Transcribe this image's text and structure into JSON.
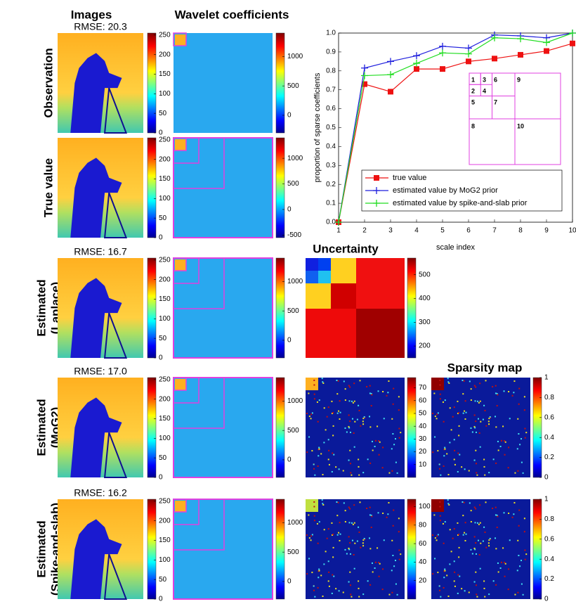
{
  "headers": {
    "images": "Images",
    "wavelet": "Wavelet coefficients",
    "uncertainty": "Uncertainty",
    "sparsity": "Sparsity map"
  },
  "rows": [
    {
      "label": [
        "Observation"
      ],
      "rmse": "RMSE: 20.3",
      "image_colorbar": {
        "lim": [
          0,
          255
        ],
        "ticks": [
          0,
          50,
          100,
          150,
          200,
          250
        ]
      },
      "wavelet_colorbar": {
        "lim": [
          -300,
          1400
        ],
        "ticks": [
          0,
          500,
          1000
        ]
      }
    },
    {
      "label": [
        "True value"
      ],
      "image_colorbar": {
        "lim": [
          0,
          255
        ],
        "ticks": [
          0,
          50,
          100,
          150,
          200,
          250
        ]
      },
      "wavelet_colorbar": {
        "lim": [
          -550,
          1400
        ],
        "ticks": [
          -500,
          0,
          500,
          1000
        ]
      }
    },
    {
      "label": [
        "Estimated",
        "(Laplace)"
      ],
      "rmse": "RMSE: 16.7",
      "image_colorbar": {
        "lim": [
          0,
          255
        ],
        "ticks": [
          0,
          50,
          100,
          150,
          200,
          250
        ]
      },
      "wavelet_colorbar": {
        "lim": [
          -300,
          1400
        ],
        "ticks": [
          0,
          500,
          1000
        ]
      },
      "uncertainty_colorbar": {
        "lim": [
          150,
          570
        ],
        "ticks": [
          200,
          300,
          400,
          500
        ]
      }
    },
    {
      "label": [
        "Estimated",
        "(MoG2)"
      ],
      "rmse": "RMSE: 17.0",
      "image_colorbar": {
        "lim": [
          0,
          255
        ],
        "ticks": [
          0,
          50,
          100,
          150,
          200,
          250
        ]
      },
      "wavelet_colorbar": {
        "lim": [
          -300,
          1400
        ],
        "ticks": [
          0,
          500,
          1000
        ]
      },
      "uncertainty_colorbar": {
        "lim": [
          0,
          78
        ],
        "ticks": [
          10,
          20,
          30,
          40,
          50,
          60,
          70
        ]
      },
      "sparsity_colorbar": {
        "lim": [
          0,
          1
        ],
        "ticks": [
          0,
          0.2,
          0.4,
          0.6,
          0.8,
          1
        ]
      }
    },
    {
      "label": [
        "Estimated",
        "(Spike-and-slab)"
      ],
      "rmse": "RMSE: 16.2",
      "image_colorbar": {
        "lim": [
          0,
          255
        ],
        "ticks": [
          0,
          50,
          100,
          150,
          200,
          250
        ]
      },
      "wavelet_colorbar": {
        "lim": [
          -300,
          1400
        ],
        "ticks": [
          0,
          500,
          1000
        ]
      },
      "uncertainty_colorbar": {
        "lim": [
          0,
          108
        ],
        "ticks": [
          20,
          40,
          60,
          80,
          100
        ]
      },
      "sparsity_colorbar": {
        "lim": [
          0,
          1
        ],
        "ticks": [
          0,
          0.2,
          0.4,
          0.6,
          0.8,
          1
        ]
      }
    }
  ],
  "chart_data": {
    "type": "line",
    "x_label": "scale index",
    "y_label": "proportion of sparse coefficients",
    "x": [
      1,
      2,
      3,
      4,
      5,
      6,
      7,
      8,
      9,
      10
    ],
    "xlim": [
      1,
      10
    ],
    "xticks": [
      1,
      2,
      3,
      4,
      5,
      6,
      7,
      8,
      9,
      10
    ],
    "ylim": [
      0,
      1
    ],
    "yticks": [
      {
        "value": 0,
        "label": "0.0"
      },
      {
        "value": 0.1,
        "label": "0.1"
      },
      {
        "value": 0.2,
        "label": "0.2"
      },
      {
        "value": 0.3,
        "label": "0.3"
      },
      {
        "value": 0.4,
        "label": "0.4"
      },
      {
        "value": 0.5,
        "label": "0.5"
      },
      {
        "value": 0.6,
        "label": "0.6"
      },
      {
        "value": 0.7,
        "label": "0.7"
      },
      {
        "value": 0.8,
        "label": "0.8"
      },
      {
        "value": 0.9,
        "label": "0.9"
      },
      {
        "value": 1,
        "label": "1.0"
      }
    ],
    "legend": "lower right",
    "series": [
      {
        "name": "true value",
        "color": "#ee1111",
        "marker": "square",
        "values": [
          0,
          0.73,
          0.69,
          0.81,
          0.81,
          0.85,
          0.865,
          0.885,
          0.905,
          0.945
        ]
      },
      {
        "name": "estimated value by MoG2 prior",
        "color": "#1f1fdd",
        "marker": "plus",
        "values": [
          0,
          0.815,
          0.85,
          0.88,
          0.93,
          0.92,
          0.99,
          0.985,
          0.975,
          1.0
        ]
      },
      {
        "name": "estimated value by spike-and-slab prior",
        "color": "#22dd22",
        "marker": "plus",
        "values": [
          0,
          0.775,
          0.78,
          0.84,
          0.895,
          0.89,
          0.975,
          0.97,
          0.95,
          1.0
        ]
      }
    ]
  },
  "inset": {
    "labels": [
      "1",
      "2",
      "3",
      "4",
      "5",
      "6",
      "7",
      "8",
      "9",
      "10"
    ]
  }
}
